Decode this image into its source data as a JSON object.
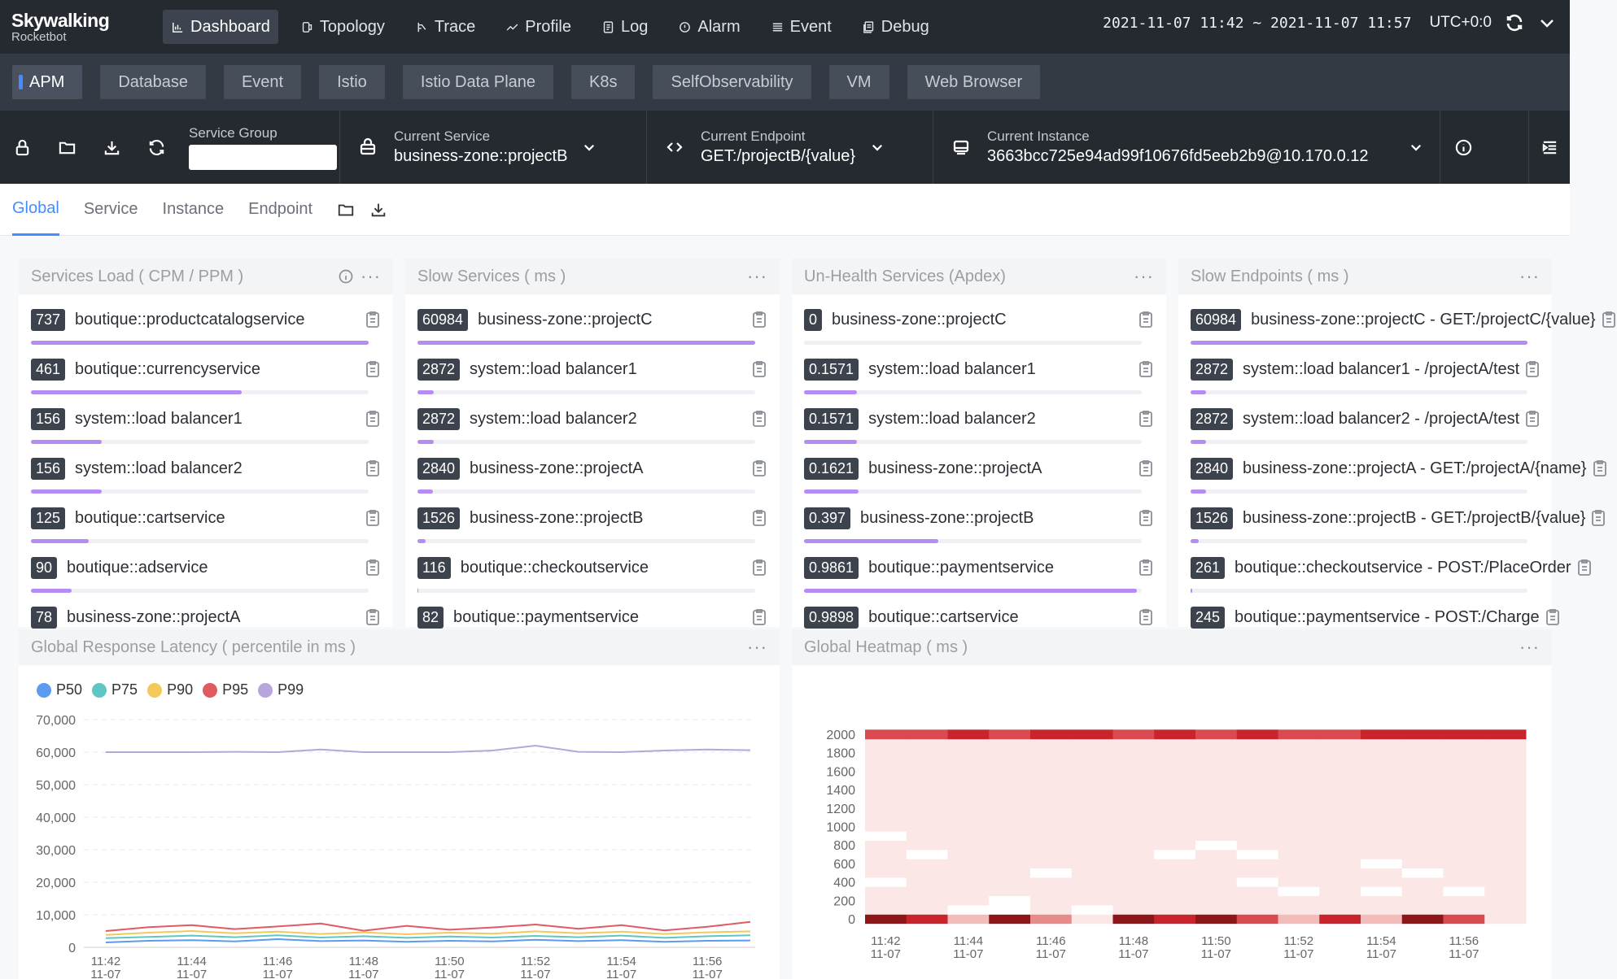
{
  "app": {
    "brand": "Skywalking",
    "sub": "Rocketbot"
  },
  "nav": [
    {
      "label": "Dashboard",
      "icon": "dashboard-icon"
    },
    {
      "label": "Topology",
      "icon": "topology-icon"
    },
    {
      "label": "Trace",
      "icon": "trace-icon"
    },
    {
      "label": "Profile",
      "icon": "profile-icon"
    },
    {
      "label": "Log",
      "icon": "log-icon"
    },
    {
      "label": "Alarm",
      "icon": "alarm-icon"
    },
    {
      "label": "Event",
      "icon": "event-icon"
    },
    {
      "label": "Debug",
      "icon": "debug-icon"
    }
  ],
  "time": {
    "range": "2021-11-07 11:42 ~ 2021-11-07 11:57",
    "tz": "UTC+0:0"
  },
  "layers": [
    "APM",
    "Database",
    "Event",
    "Istio",
    "Istio Data Plane",
    "K8s",
    "SelfObservability",
    "VM",
    "Web Browser"
  ],
  "selectors": {
    "group_label": "Service Group",
    "group_value": "",
    "service_label": "Current Service",
    "service_value": "business-zone::projectB",
    "endpoint_label": "Current Endpoint",
    "endpoint_value": "GET:/projectB/{value}",
    "instance_label": "Current Instance",
    "instance_value": "3663bcc725e94ad99f10676fd5eeb2b9@10.170.0.12"
  },
  "views": [
    "Global",
    "Service",
    "Instance",
    "Endpoint"
  ],
  "panels": {
    "load": {
      "title": "Services Load ( CPM / PPM )",
      "rows": [
        {
          "value": "737",
          "label": "boutique::productcatalogservice",
          "pct": 1.0
        },
        {
          "value": "461",
          "label": "boutique::currencyservice",
          "pct": 0.625
        },
        {
          "value": "156",
          "label": "system::load balancer1",
          "pct": 0.21
        },
        {
          "value": "156",
          "label": "system::load balancer2",
          "pct": 0.21
        },
        {
          "value": "125",
          "label": "boutique::cartservice",
          "pct": 0.17
        },
        {
          "value": "90",
          "label": "boutique::adservice",
          "pct": 0.12
        },
        {
          "value": "78",
          "label": "business-zone::projectA",
          "pct": 0.1
        }
      ]
    },
    "slow_services": {
      "title": "Slow Services ( ms )",
      "rows": [
        {
          "value": "60984",
          "label": "business-zone::projectC",
          "pct": 1.0
        },
        {
          "value": "2872",
          "label": "system::load balancer1",
          "pct": 0.047
        },
        {
          "value": "2872",
          "label": "system::load balancer2",
          "pct": 0.047
        },
        {
          "value": "2840",
          "label": "business-zone::projectA",
          "pct": 0.046
        },
        {
          "value": "1526",
          "label": "business-zone::projectB",
          "pct": 0.025
        },
        {
          "value": "116",
          "label": "boutique::checkoutservice",
          "pct": 0.002
        },
        {
          "value": "82",
          "label": "boutique::paymentservice",
          "pct": 0.001
        }
      ]
    },
    "unhealth": {
      "title": "Un-Health Services (Apdex)",
      "rows": [
        {
          "value": "0",
          "label": "business-zone::projectC",
          "pct": 0.0
        },
        {
          "value": "0.1571",
          "label": "system::load balancer1",
          "pct": 0.157
        },
        {
          "value": "0.1571",
          "label": "system::load balancer2",
          "pct": 0.157
        },
        {
          "value": "0.1621",
          "label": "business-zone::projectA",
          "pct": 0.162
        },
        {
          "value": "0.397",
          "label": "business-zone::projectB",
          "pct": 0.397
        },
        {
          "value": "0.9861",
          "label": "boutique::paymentservice",
          "pct": 0.986
        },
        {
          "value": "0.9898",
          "label": "boutique::cartservice",
          "pct": 0.99
        }
      ]
    },
    "slow_endpoints": {
      "title": "Slow Endpoints ( ms )",
      "rows": [
        {
          "value": "60984",
          "label": "business-zone::projectC - GET:/projectC/{value}",
          "pct": 1.0
        },
        {
          "value": "2872",
          "label": "system::load balancer1 - /projectA/test",
          "pct": 0.047
        },
        {
          "value": "2872",
          "label": "system::load balancer2 - /projectA/test",
          "pct": 0.047
        },
        {
          "value": "2840",
          "label": "business-zone::projectA - GET:/projectA/{name}",
          "pct": 0.046
        },
        {
          "value": "1526",
          "label": "business-zone::projectB - GET:/projectB/{value}",
          "pct": 0.025
        },
        {
          "value": "261",
          "label": "boutique::checkoutservice - POST:/PlaceOrder",
          "pct": 0.004
        },
        {
          "value": "245",
          "label": "boutique::paymentservice - POST:/Charge",
          "pct": 0.004
        }
      ]
    },
    "latency_title": "Global Response Latency ( percentile in ms )",
    "heatmap_title": "Global Heatmap ( ms )"
  },
  "chart_data": [
    {
      "type": "line",
      "title": "Global Response Latency ( percentile in ms )",
      "x": [
        "11:42",
        "11:43",
        "11:44",
        "11:45",
        "11:46",
        "11:47",
        "11:48",
        "11:49",
        "11:50",
        "11:51",
        "11:52",
        "11:53",
        "11:54",
        "11:55",
        "11:56",
        "11:57"
      ],
      "x_tick_labels": [
        "11:42\n11-07",
        "11:44\n11-07",
        "11:46\n11-07",
        "11:48\n11-07",
        "11:50\n11-07",
        "11:52\n11-07",
        "11:54\n11-07",
        "11:56\n11-07"
      ],
      "ylim": [
        0,
        70000
      ],
      "y_ticks": [
        "0",
        "10,000",
        "20,000",
        "30,000",
        "40,000",
        "50,000",
        "60,000",
        "70,000"
      ],
      "legend": "top-left",
      "grid": true,
      "series": [
        {
          "name": "P50",
          "color": "#5b9bf0",
          "values": [
            1500,
            2000,
            2200,
            1800,
            2500,
            1900,
            2100,
            1700,
            2000,
            1800,
            2300,
            1900,
            2200,
            1700,
            2000,
            2100
          ]
        },
        {
          "name": "P75",
          "color": "#5fc6c3",
          "values": [
            2800,
            3200,
            3600,
            3100,
            3700,
            3000,
            3400,
            2900,
            3300,
            3000,
            3500,
            3100,
            3600,
            2900,
            3400,
            3700
          ]
        },
        {
          "name": "P90",
          "color": "#f5c85a",
          "values": [
            3800,
            4500,
            5000,
            4300,
            4800,
            4100,
            4600,
            4000,
            4500,
            4200,
            4900,
            4300,
            4800,
            4100,
            4600,
            4900
          ]
        },
        {
          "name": "P95",
          "color": "#e05a62",
          "values": [
            5000,
            6200,
            6800,
            5600,
            6400,
            7300,
            5100,
            6600,
            5400,
            6100,
            7000,
            5700,
            6800,
            5200,
            6300,
            7800
          ]
        },
        {
          "name": "P99",
          "color": "#b6a6dc",
          "values": [
            60000,
            60000,
            60000,
            60100,
            60000,
            60800,
            60000,
            60000,
            60000,
            60500,
            62000,
            60100,
            60000,
            60500,
            60800,
            60600
          ]
        }
      ]
    },
    {
      "type": "heatmap",
      "title": "Global Heatmap ( ms )",
      "x": [
        "11:42",
        "11:43",
        "11:44",
        "11:45",
        "11:46",
        "11:47",
        "11:48",
        "11:49",
        "11:50",
        "11:51",
        "11:52",
        "11:53",
        "11:54",
        "11:55",
        "11:56",
        "11:57"
      ],
      "x_tick_labels": [
        "11:42\n11-07",
        "11:44\n11-07",
        "11:46\n11-07",
        "11:48\n11-07",
        "11:50\n11-07",
        "11:52\n11-07",
        "11:54\n11-07",
        "11:56\n11-07"
      ],
      "y_buckets": [
        0,
        100,
        200,
        300,
        400,
        500,
        600,
        700,
        800,
        900,
        1000,
        1100,
        1200,
        1300,
        1400,
        1500,
        1600,
        1700,
        1800,
        1900,
        2000
      ],
      "y_tick_labels": [
        "0",
        "200",
        "400",
        "600",
        "800",
        "1000",
        "1200",
        "1400",
        "1600",
        "1800",
        "2000"
      ],
      "colors": [
        "#ffffff",
        "#fbe7e5",
        "#f3bcba",
        "#e68a8a",
        "#d94b50",
        "#c9242c",
        "#8e1519"
      ],
      "note_levels": "level index 0 (white) .. 6 (darkest red) per cell; rows bottom (0 ms) to top (2000 ms)",
      "levels": [
        [
          6,
          5,
          2,
          6,
          3,
          1,
          6,
          5,
          6,
          4,
          2,
          5,
          2,
          6,
          4,
          1
        ],
        [
          1,
          1,
          0,
          0,
          1,
          0,
          1,
          1,
          1,
          1,
          1,
          1,
          1,
          1,
          1,
          1
        ],
        [
          1,
          1,
          1,
          0,
          1,
          1,
          1,
          1,
          1,
          1,
          1,
          1,
          1,
          1,
          1,
          1
        ],
        [
          1,
          1,
          1,
          1,
          1,
          1,
          1,
          1,
          1,
          1,
          0,
          1,
          0,
          1,
          0,
          1
        ],
        [
          0,
          1,
          1,
          1,
          1,
          1,
          1,
          1,
          1,
          0,
          1,
          1,
          1,
          1,
          1,
          1
        ],
        [
          1,
          1,
          1,
          1,
          0,
          1,
          1,
          1,
          1,
          1,
          1,
          1,
          1,
          0,
          1,
          1
        ],
        [
          1,
          1,
          1,
          1,
          1,
          1,
          1,
          1,
          1,
          1,
          1,
          1,
          0,
          1,
          1,
          1
        ],
        [
          1,
          0,
          1,
          1,
          1,
          1,
          1,
          0,
          1,
          0,
          1,
          1,
          1,
          1,
          1,
          1
        ],
        [
          1,
          1,
          1,
          1,
          1,
          1,
          1,
          1,
          0,
          1,
          1,
          1,
          1,
          1,
          1,
          1
        ],
        [
          0,
          1,
          1,
          1,
          1,
          1,
          1,
          1,
          1,
          1,
          1,
          1,
          1,
          1,
          1,
          1
        ],
        [
          1,
          1,
          1,
          1,
          1,
          1,
          1,
          1,
          1,
          1,
          1,
          1,
          1,
          1,
          1,
          1
        ],
        [
          1,
          1,
          1,
          1,
          1,
          1,
          1,
          1,
          1,
          1,
          1,
          1,
          1,
          1,
          1,
          1
        ],
        [
          1,
          1,
          1,
          1,
          1,
          1,
          1,
          1,
          1,
          1,
          1,
          1,
          1,
          1,
          1,
          1
        ],
        [
          1,
          1,
          1,
          1,
          1,
          1,
          1,
          1,
          1,
          1,
          1,
          1,
          1,
          1,
          1,
          1
        ],
        [
          1,
          1,
          1,
          1,
          1,
          1,
          1,
          1,
          1,
          1,
          1,
          1,
          1,
          1,
          1,
          1
        ],
        [
          1,
          1,
          1,
          1,
          1,
          1,
          1,
          1,
          1,
          1,
          1,
          1,
          1,
          1,
          1,
          1
        ],
        [
          1,
          1,
          1,
          1,
          1,
          1,
          1,
          1,
          1,
          1,
          1,
          1,
          1,
          1,
          1,
          1
        ],
        [
          1,
          1,
          1,
          1,
          1,
          1,
          1,
          1,
          1,
          1,
          1,
          1,
          1,
          1,
          1,
          1
        ],
        [
          1,
          1,
          1,
          1,
          1,
          1,
          1,
          1,
          1,
          1,
          1,
          1,
          1,
          1,
          1,
          1
        ],
        [
          1,
          1,
          1,
          1,
          1,
          1,
          1,
          1,
          1,
          1,
          1,
          1,
          1,
          1,
          1,
          1
        ],
        [
          4,
          4,
          5,
          4,
          5,
          5,
          4,
          5,
          4,
          5,
          4,
          4,
          5,
          5,
          5,
          5
        ]
      ]
    }
  ]
}
